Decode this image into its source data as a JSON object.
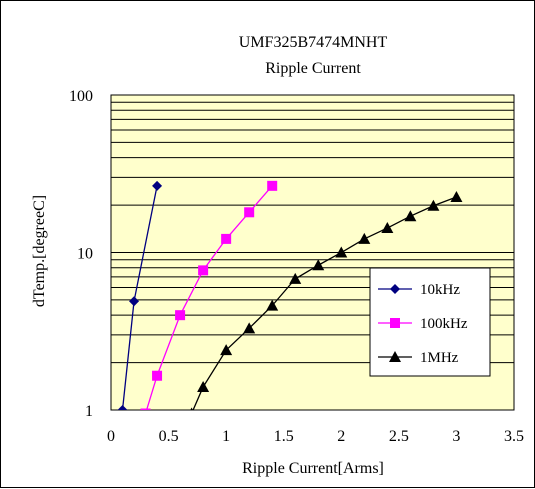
{
  "chart_data": {
    "type": "line",
    "title": "UMF325B7474MNHT",
    "subtitle": "Ripple Current",
    "xlabel": "Ripple Current[Arms]",
    "ylabel": "dTemp.[degreeC]",
    "xlim": [
      0,
      3.5
    ],
    "ylim": [
      1,
      100
    ],
    "yscale": "log",
    "grid": true,
    "legend_position": "right",
    "x_ticks": [
      "0",
      "0.5",
      "1",
      "1.5",
      "2",
      "2.5",
      "3",
      "3.5"
    ],
    "y_ticks": [
      "1",
      "10",
      "100"
    ],
    "plot_background": "#FFFFCC",
    "series": [
      {
        "name": "10kHz",
        "color": "#000080",
        "marker": "diamond",
        "x": [
          0.1,
          0.2,
          0.4
        ],
        "y": [
          1.0,
          4.9,
          26.5
        ]
      },
      {
        "name": "100kHz",
        "color": "#FF00FF",
        "marker": "square",
        "x": [
          0.3,
          0.4,
          0.6,
          0.8,
          1.0,
          1.2,
          1.4
        ],
        "y": [
          0.95,
          1.65,
          4.0,
          7.7,
          12.2,
          18.0,
          26.5
        ]
      },
      {
        "name": "1MHz",
        "color": "#000000",
        "marker": "triangle",
        "x": [
          0.7,
          0.8,
          1.0,
          1.2,
          1.4,
          1.6,
          1.8,
          2.0,
          2.2,
          2.4,
          2.6,
          2.8,
          3.0
        ],
        "y": [
          0.95,
          1.4,
          2.4,
          3.3,
          4.6,
          6.8,
          8.3,
          10.0,
          12.2,
          14.3,
          17.0,
          19.8,
          22.5
        ]
      }
    ]
  }
}
